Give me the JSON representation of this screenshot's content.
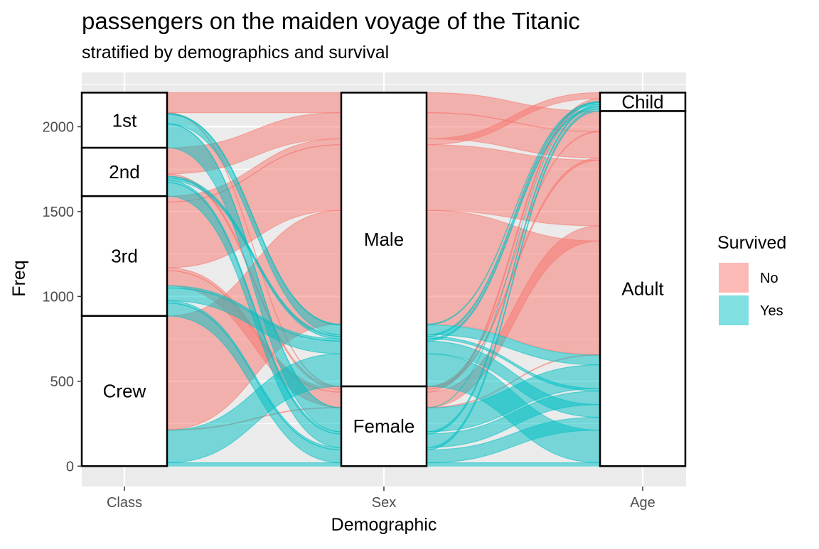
{
  "chart_data": {
    "type": "alluvial",
    "title": "passengers on the maiden voyage of the Titanic",
    "subtitle": "stratified by demographics and survival",
    "xlabel": "Demographic",
    "ylabel": "Freq",
    "ylim": [
      -120,
      2320
    ],
    "yticks": [
      0,
      500,
      1000,
      1500,
      2000
    ],
    "axes": [
      "Class",
      "Sex",
      "Age"
    ],
    "strata": {
      "Class": [
        "1st",
        "2nd",
        "3rd",
        "Crew"
      ],
      "Sex": [
        "Male",
        "Female"
      ],
      "Age": [
        "Child",
        "Adult"
      ]
    },
    "legend": {
      "title": "Survived",
      "placement": "right",
      "entries": [
        {
          "label": "No",
          "color": "#F8766D"
        },
        {
          "label": "Yes",
          "color": "#00BFC4"
        }
      ]
    },
    "flows": [
      {
        "Class": "1st",
        "Sex": "Male",
        "Age": "Child",
        "Survived": "No",
        "Freq": 0
      },
      {
        "Class": "2nd",
        "Sex": "Male",
        "Age": "Child",
        "Survived": "No",
        "Freq": 0
      },
      {
        "Class": "3rd",
        "Sex": "Male",
        "Age": "Child",
        "Survived": "No",
        "Freq": 35
      },
      {
        "Class": "Crew",
        "Sex": "Male",
        "Age": "Child",
        "Survived": "No",
        "Freq": 0
      },
      {
        "Class": "1st",
        "Sex": "Female",
        "Age": "Child",
        "Survived": "No",
        "Freq": 0
      },
      {
        "Class": "2nd",
        "Sex": "Female",
        "Age": "Child",
        "Survived": "No",
        "Freq": 0
      },
      {
        "Class": "3rd",
        "Sex": "Female",
        "Age": "Child",
        "Survived": "No",
        "Freq": 17
      },
      {
        "Class": "Crew",
        "Sex": "Female",
        "Age": "Child",
        "Survived": "No",
        "Freq": 0
      },
      {
        "Class": "1st",
        "Sex": "Male",
        "Age": "Adult",
        "Survived": "No",
        "Freq": 118
      },
      {
        "Class": "2nd",
        "Sex": "Male",
        "Age": "Adult",
        "Survived": "No",
        "Freq": 154
      },
      {
        "Class": "3rd",
        "Sex": "Male",
        "Age": "Adult",
        "Survived": "No",
        "Freq": 387
      },
      {
        "Class": "Crew",
        "Sex": "Male",
        "Age": "Adult",
        "Survived": "No",
        "Freq": 670
      },
      {
        "Class": "1st",
        "Sex": "Female",
        "Age": "Adult",
        "Survived": "No",
        "Freq": 4
      },
      {
        "Class": "2nd",
        "Sex": "Female",
        "Age": "Adult",
        "Survived": "No",
        "Freq": 13
      },
      {
        "Class": "3rd",
        "Sex": "Female",
        "Age": "Adult",
        "Survived": "No",
        "Freq": 89
      },
      {
        "Class": "Crew",
        "Sex": "Female",
        "Age": "Adult",
        "Survived": "No",
        "Freq": 3
      },
      {
        "Class": "1st",
        "Sex": "Male",
        "Age": "Child",
        "Survived": "Yes",
        "Freq": 5
      },
      {
        "Class": "2nd",
        "Sex": "Male",
        "Age": "Child",
        "Survived": "Yes",
        "Freq": 11
      },
      {
        "Class": "3rd",
        "Sex": "Male",
        "Age": "Child",
        "Survived": "Yes",
        "Freq": 13
      },
      {
        "Class": "Crew",
        "Sex": "Male",
        "Age": "Child",
        "Survived": "Yes",
        "Freq": 0
      },
      {
        "Class": "1st",
        "Sex": "Female",
        "Age": "Child",
        "Survived": "Yes",
        "Freq": 1
      },
      {
        "Class": "2nd",
        "Sex": "Female",
        "Age": "Child",
        "Survived": "Yes",
        "Freq": 13
      },
      {
        "Class": "3rd",
        "Sex": "Female",
        "Age": "Child",
        "Survived": "Yes",
        "Freq": 14
      },
      {
        "Class": "Crew",
        "Sex": "Female",
        "Age": "Child",
        "Survived": "Yes",
        "Freq": 0
      },
      {
        "Class": "1st",
        "Sex": "Male",
        "Age": "Adult",
        "Survived": "Yes",
        "Freq": 57
      },
      {
        "Class": "2nd",
        "Sex": "Male",
        "Age": "Adult",
        "Survived": "Yes",
        "Freq": 14
      },
      {
        "Class": "3rd",
        "Sex": "Male",
        "Age": "Adult",
        "Survived": "Yes",
        "Freq": 75
      },
      {
        "Class": "Crew",
        "Sex": "Male",
        "Age": "Adult",
        "Survived": "Yes",
        "Freq": 192
      },
      {
        "Class": "1st",
        "Sex": "Female",
        "Age": "Adult",
        "Survived": "Yes",
        "Freq": 140
      },
      {
        "Class": "2nd",
        "Sex": "Female",
        "Age": "Adult",
        "Survived": "Yes",
        "Freq": 80
      },
      {
        "Class": "3rd",
        "Sex": "Female",
        "Age": "Adult",
        "Survived": "Yes",
        "Freq": 76
      },
      {
        "Class": "Crew",
        "Sex": "Female",
        "Age": "Adult",
        "Survived": "Yes",
        "Freq": 20
      }
    ],
    "grid": true,
    "panel_background": "#EBEBEB"
  }
}
